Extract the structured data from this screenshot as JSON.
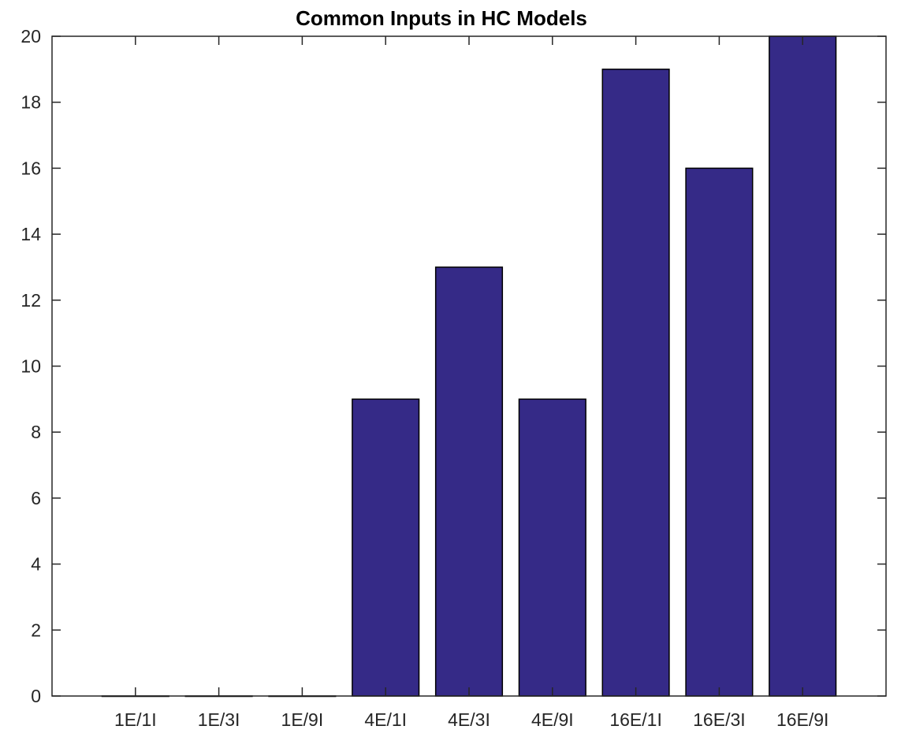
{
  "chart_data": {
    "type": "bar",
    "title": "Common Inputs in HC Models",
    "xlabel": "",
    "ylabel": "",
    "categories": [
      "1E/1I",
      "1E/3I",
      "1E/9I",
      "4E/1I",
      "4E/3I",
      "4E/9I",
      "16E/1I",
      "16E/3I",
      "16E/9I"
    ],
    "values": [
      0,
      0,
      0,
      9,
      13,
      9,
      19,
      16,
      20
    ],
    "ylim": [
      0,
      20
    ],
    "yticks": [
      0,
      2,
      4,
      6,
      8,
      10,
      12,
      14,
      16,
      18,
      20
    ],
    "ytick_labels": [
      "0",
      "2",
      "4",
      "6",
      "8",
      "10",
      "12",
      "14",
      "16",
      "18",
      "20"
    ],
    "grid": false,
    "legend": "none",
    "colors": {
      "bar_fill": "#352a87",
      "bar_edge": "#000000",
      "axes": "#262626",
      "background": "#ffffff"
    }
  }
}
